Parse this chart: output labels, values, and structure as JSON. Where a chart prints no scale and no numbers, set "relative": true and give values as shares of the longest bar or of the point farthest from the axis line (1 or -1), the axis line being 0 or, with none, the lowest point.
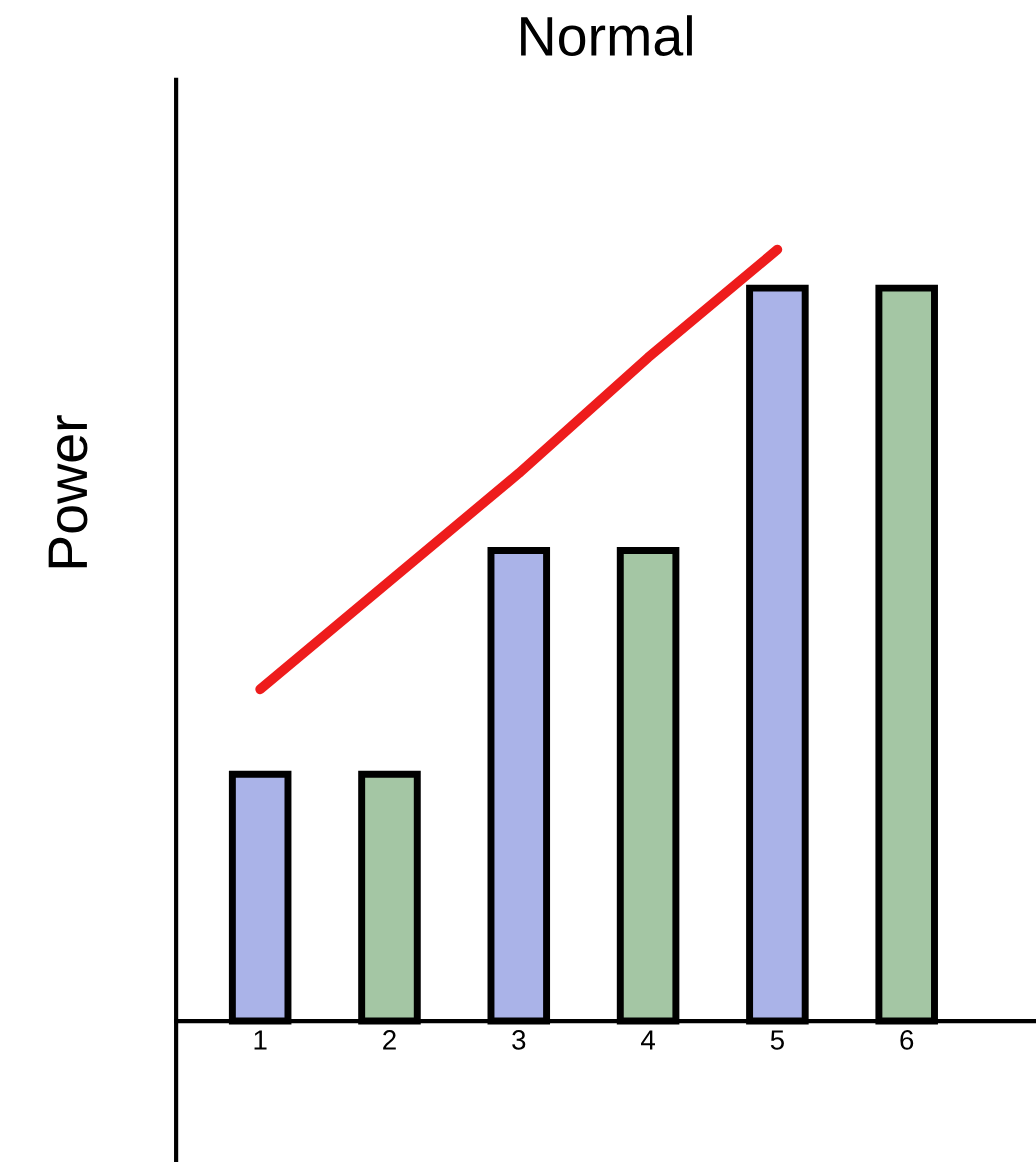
{
  "chart_data": {
    "type": "bar",
    "title": "Normal",
    "ylabel": "Power",
    "relative": true,
    "categories": [
      "1",
      "2",
      "3",
      "4",
      "5",
      "6"
    ],
    "series": [
      {
        "values": [
          0.32,
          null,
          0.61,
          null,
          0.95,
          null
        ],
        "color": "#aab3e8"
      },
      {
        "values": [
          null,
          0.32,
          null,
          0.61,
          null,
          0.95
        ],
        "color": "#a4c6a4"
      },
      {
        "type": "line",
        "values": [
          0.43,
          0.57,
          0.71,
          0.86,
          1.0,
          null
        ],
        "color": "#ee1c1c"
      }
    ],
    "grid": false,
    "legend": false
  }
}
